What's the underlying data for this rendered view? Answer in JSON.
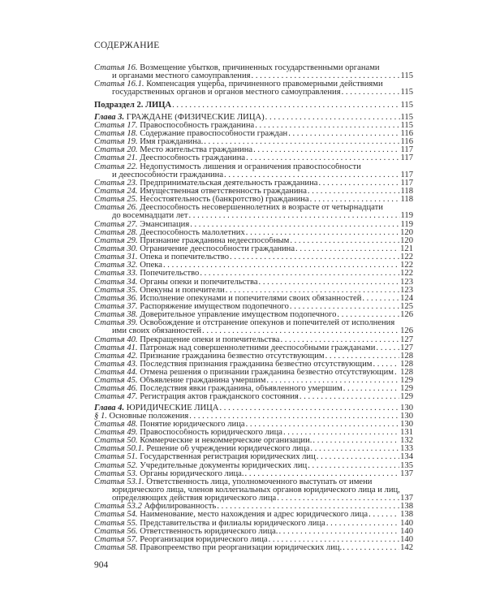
{
  "header": "СОДЕРЖАНИЕ",
  "page_number": "904",
  "entries": [
    {
      "kind": "article",
      "label": "Статья 16.",
      "lines": [
        "Возмещение убытков, причиненных государственными органами",
        "и органами местного самоуправления"
      ],
      "page": "115"
    },
    {
      "kind": "article",
      "label": "Статья 16.1.",
      "lines": [
        "Компенсация ущерба, причиненного правомерными действиями",
        "государственных органов и органов местного самоуправления"
      ],
      "page": "115"
    },
    {
      "kind": "subsection",
      "label": "",
      "lines": [
        "Подраздел 2. ЛИЦА"
      ],
      "page": "115",
      "gap": "big"
    },
    {
      "kind": "chapter",
      "label": "Глава 3.",
      "lines": [
        "ГРАЖДАНЕ (ФИЗИЧЕСКИЕ ЛИЦА)"
      ],
      "page": "115",
      "gap": "big"
    },
    {
      "kind": "article",
      "label": "Статья 17.",
      "lines": [
        "Правоспособность гражданина"
      ],
      "page": "115"
    },
    {
      "kind": "article",
      "label": "Статья 18.",
      "lines": [
        "Содержание правоспособности граждан"
      ],
      "page": "116"
    },
    {
      "kind": "article",
      "label": "Статья 19.",
      "lines": [
        "Имя гражданина."
      ],
      "page": "116"
    },
    {
      "kind": "article",
      "label": "Статья 20.",
      "lines": [
        "Место жительства гражданина"
      ],
      "page": "117"
    },
    {
      "kind": "article",
      "label": "Статья 21.",
      "lines": [
        "Дееспособность гражданина"
      ],
      "page": "117"
    },
    {
      "kind": "article",
      "label": "Статья 22.",
      "lines": [
        "Недопустимость лишения и ограничения правоспособности",
        "и дееспособности гражданина"
      ],
      "page": "117"
    },
    {
      "kind": "article",
      "label": "Статья 23.",
      "lines": [
        "Предпринимательская деятельность гражданина"
      ],
      "page": "117"
    },
    {
      "kind": "article",
      "label": "Статья 24.",
      "lines": [
        "Имущественная ответственность гражданина"
      ],
      "page": "118"
    },
    {
      "kind": "article",
      "label": "Статья 25.",
      "lines": [
        "Несостоятельность (банкротство) гражданина"
      ],
      "page": "118"
    },
    {
      "kind": "article",
      "label": "Статья 26.",
      "lines": [
        "Дееспособность несовершеннолетних в возрасте от четырнадцати",
        "до восемнадцати лет"
      ],
      "page": "119"
    },
    {
      "kind": "article",
      "label": "Статья 27.",
      "lines": [
        "Эмансипация"
      ],
      "page": "119"
    },
    {
      "kind": "article",
      "label": "Статья 28.",
      "lines": [
        "Дееспособность малолетних"
      ],
      "page": "120"
    },
    {
      "kind": "article",
      "label": "Статья 29.",
      "lines": [
        "Признание гражданина недееспособным"
      ],
      "page": "120"
    },
    {
      "kind": "article",
      "label": "Статья 30.",
      "lines": [
        "Ограничение дееспособности гражданина"
      ],
      "page": "121"
    },
    {
      "kind": "article",
      "label": "Статья 31.",
      "lines": [
        "Опека и попечительство"
      ],
      "page": "122"
    },
    {
      "kind": "article",
      "label": "Статья 32.",
      "lines": [
        "Опека"
      ],
      "page": "122"
    },
    {
      "kind": "article",
      "label": "Статья 33.",
      "lines": [
        "Попечительство"
      ],
      "page": "122"
    },
    {
      "kind": "article",
      "label": "Статья 34.",
      "lines": [
        "Органы опеки и попечительства"
      ],
      "page": "123"
    },
    {
      "kind": "article",
      "label": "Статья 35.",
      "lines": [
        "Опекуны и попечители"
      ],
      "page": "123"
    },
    {
      "kind": "article",
      "label": "Статья 36.",
      "lines": [
        "Исполнение опекунами и попечителями своих обязанностей"
      ],
      "page": "124"
    },
    {
      "kind": "article",
      "label": "Статья 37.",
      "lines": [
        "Распоряжение имуществом подопечного"
      ],
      "page": "125"
    },
    {
      "kind": "article",
      "label": "Статья 38.",
      "lines": [
        "Доверительное управление имуществом подопечного"
      ],
      "page": "126"
    },
    {
      "kind": "article",
      "label": "Статья 39.",
      "lines": [
        "Освобождение и отстранение опекунов и попечителей от исполнения",
        "ими своих обязанностей"
      ],
      "page": "126"
    },
    {
      "kind": "article",
      "label": "Статья 40.",
      "lines": [
        "Прекращение опеки и попечительства"
      ],
      "page": "127"
    },
    {
      "kind": "article",
      "label": "Статья 41.",
      "lines": [
        "Патронаж над совершеннолетними дееспособными гражданами"
      ],
      "page": "127"
    },
    {
      "kind": "article",
      "label": "Статья 42.",
      "lines": [
        "Признание гражданина безвестно отсутствующим"
      ],
      "page": "128"
    },
    {
      "kind": "article",
      "label": "Статья 43.",
      "lines": [
        "Последствия признания гражданина безвестно отсутствующим"
      ],
      "page": "128"
    },
    {
      "kind": "article",
      "label": "Статья 44.",
      "lines": [
        "Отмена решения о признании гражданина безвестно отсутствующим"
      ],
      "page": "128"
    },
    {
      "kind": "article",
      "label": "Статья 45.",
      "lines": [
        "Объявление гражданина умершим"
      ],
      "page": "129"
    },
    {
      "kind": "article",
      "label": "Статья 46.",
      "lines": [
        "Последствия явки гражданина, объявленного умершим"
      ],
      "page": "129"
    },
    {
      "kind": "article",
      "label": "Статья 47.",
      "lines": [
        "Регистрация актов гражданского состояния"
      ],
      "page": "129"
    },
    {
      "kind": "chapter",
      "label": "Глава 4.",
      "lines": [
        "ЮРИДИЧЕСКИЕ ЛИЦА"
      ],
      "page": "130",
      "gap": "sm"
    },
    {
      "kind": "paragraph",
      "label": "§ 1.",
      "lines": [
        "Основные положения"
      ],
      "page": "130"
    },
    {
      "kind": "article",
      "label": "Статья 48.",
      "lines": [
        "Понятие юридического лица"
      ],
      "page": "130"
    },
    {
      "kind": "article",
      "label": "Статья 49.",
      "lines": [
        "Правоспособность юридического лица"
      ],
      "page": "131"
    },
    {
      "kind": "article",
      "label": "Статья 50.",
      "lines": [
        "Коммерческие и некоммерческие организации."
      ],
      "page": "132"
    },
    {
      "kind": "article",
      "label": "Статья 50.1.",
      "lines": [
        "Решение об учреждении юридического лица"
      ],
      "page": "133"
    },
    {
      "kind": "article",
      "label": "Статья 51.",
      "lines": [
        "Государственная регистрация юридических лиц"
      ],
      "page": "134"
    },
    {
      "kind": "article",
      "label": "Статья 52.",
      "lines": [
        "Учредительные документы юридических лиц"
      ],
      "page": "135"
    },
    {
      "kind": "article",
      "label": "Статья 53.",
      "lines": [
        "Органы юридического лица."
      ],
      "page": "137"
    },
    {
      "kind": "article",
      "label": "Статья 53.1.",
      "lines": [
        "Ответственность лица, уполномоченного выступать от имени",
        "юридического лица, членов коллегиальных органов юридического лица и лиц,",
        "определяющих действия юридического лица"
      ],
      "page": "137"
    },
    {
      "kind": "article",
      "label": "Статья 53.2",
      "lines": [
        "Аффилированность"
      ],
      "page": "138"
    },
    {
      "kind": "article",
      "label": "Статья 54.",
      "lines": [
        "Наименование, место нахождения и адрес юридического лица"
      ],
      "page": "138"
    },
    {
      "kind": "article",
      "label": "Статья 55.",
      "lines": [
        "Представительства и филиалы юридического лица"
      ],
      "page": "140"
    },
    {
      "kind": "article",
      "label": "Статья 56.",
      "lines": [
        "Ответственность юридического лица."
      ],
      "page": "140"
    },
    {
      "kind": "article",
      "label": "Статья 57.",
      "lines": [
        "Реорганизация юридического лица"
      ],
      "page": "140"
    },
    {
      "kind": "article",
      "label": "Статья 58.",
      "lines": [
        "Правопреемство при реорганизации юридических лиц."
      ],
      "page": "142"
    }
  ]
}
